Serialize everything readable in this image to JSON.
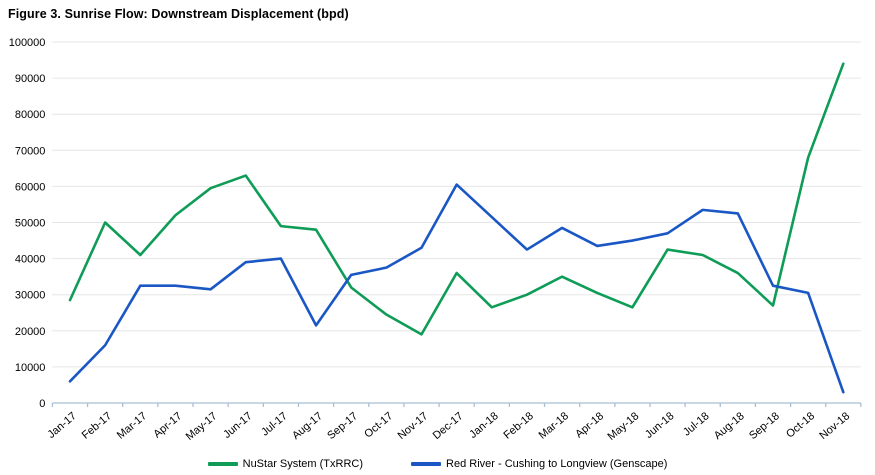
{
  "title": "Figure 3. Sunrise Flow: Downstream Displacement (bpd)",
  "colors": {
    "green_series": "#0E9C57",
    "blue_series": "#1A57C4",
    "gridline": "#E6E6E6",
    "axis": "#A9BFD3",
    "text": "#000000",
    "background": "#FFFFFF"
  },
  "chart_data": {
    "type": "line",
    "title": "Figure 3. Sunrise Flow: Downstream Displacement (bpd)",
    "xlabel": "",
    "ylabel": "",
    "ylim": [
      0,
      100000
    ],
    "ytick_step": 10000,
    "grid": true,
    "legend_position": "bottom",
    "categories": [
      "Jan-17",
      "Feb-17",
      "Mar-17",
      "Apr-17",
      "May-17",
      "Jun-17",
      "Jul-17",
      "Aug-17",
      "Sep-17",
      "Oct-17",
      "Nov-17",
      "Dec-17",
      "Jan-18",
      "Feb-18",
      "Mar-18",
      "Apr-18",
      "May-18",
      "Jun-18",
      "Jul-18",
      "Aug-18",
      "Sep-18",
      "Oct-18",
      "Nov-18"
    ],
    "series": [
      {
        "name": "NuStar System (TxRRC)",
        "color": "#0E9C57",
        "values": [
          28500,
          50000,
          41000,
          52000,
          59500,
          63000,
          49000,
          48000,
          32000,
          24500,
          19000,
          36000,
          26500,
          30000,
          35000,
          30500,
          26500,
          42500,
          41000,
          36000,
          27000,
          68000,
          94000
        ]
      },
      {
        "name": "Red River - Cushing to Longview (Genscape)",
        "color": "#1A57C4",
        "values": [
          6000,
          16000,
          32500,
          32500,
          31500,
          39000,
          40000,
          21500,
          35500,
          37500,
          43000,
          60500,
          51500,
          42500,
          48500,
          43500,
          45000,
          47000,
          53500,
          52500,
          32500,
          30500,
          3000
        ]
      }
    ]
  }
}
